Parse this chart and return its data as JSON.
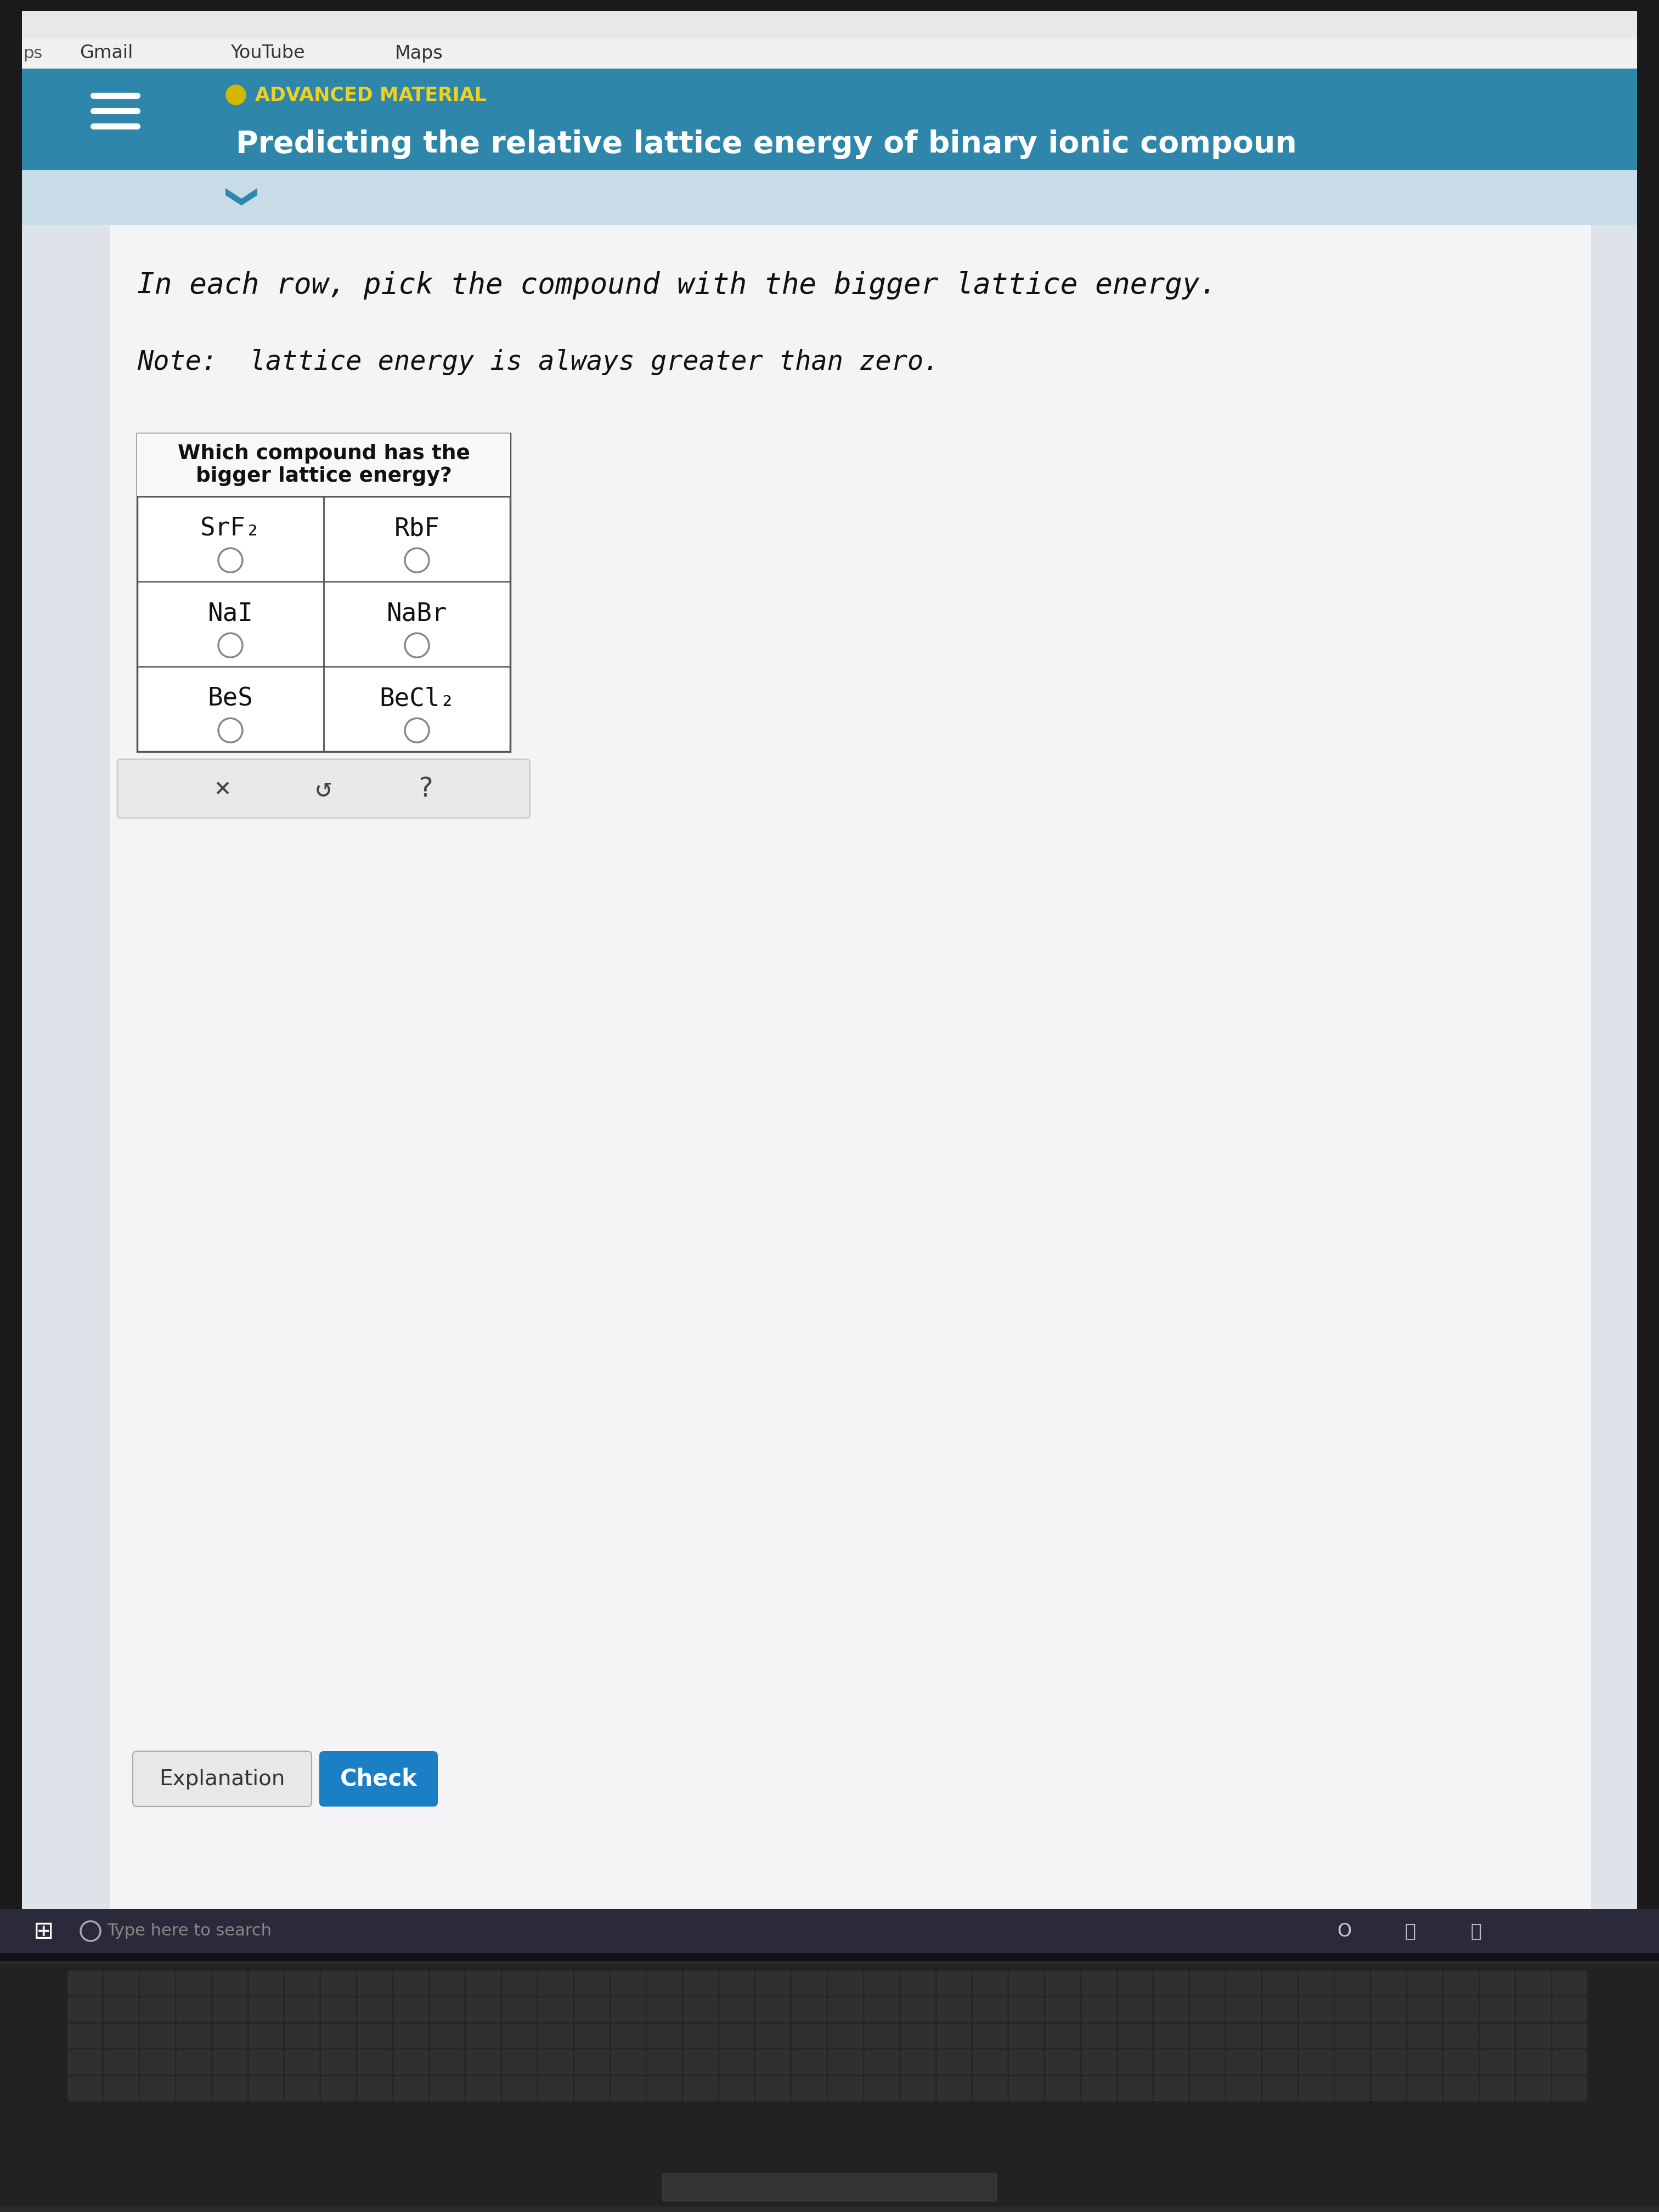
{
  "bg_outer": "#6a6a6a",
  "browser_bar_bg": "#f0f0f0",
  "screen_bg": "#c0c0c8",
  "header_color": "#2e87ab",
  "header_text_color": "#ffffff",
  "advanced_material_label": "ADVANCED MATERIAL",
  "advanced_dot_color": "#d4b800",
  "title_text": "Predicting the relative lattice energy of binary ionic compoun",
  "chevron_color": "#2e87ab",
  "chevron_bg": "#c8dce8",
  "content_bg": "#dde3e8",
  "white_panel_bg": "#f4f4f6",
  "instruction_text": "In each row, pick the compound with the bigger lattice energy.",
  "note_text": "Note:  lattice energy is always greater than zero.",
  "table_header_line1": "Which compound has the",
  "table_header_line2": "bigger lattice energy?",
  "table_col1": [
    "SrF₂",
    "NaI",
    "BeS"
  ],
  "table_col2": [
    "RbF",
    "NaBr",
    "BeCl₂"
  ],
  "table_border_color": "#555555",
  "table_bg": "#ffffff",
  "radio_color": "#888888",
  "taskbar_color": "#2a2a3a",
  "taskbar_dark": "#1e1e2e",
  "explanation_btn_color": "#e8e8e8",
  "check_btn_color": "#1a7fc4",
  "check_btn_text": "Check",
  "explanation_btn_text": "Explanation",
  "bottom_icon_x": "×",
  "bottom_icon_undo": "↺",
  "bottom_icon_q": "?",
  "search_bar_text": "Type here to search",
  "gmail_text": "Gmail",
  "youtube_text": "YouTube",
  "maps_text": "Maps",
  "hamburger_color": "#ffffff",
  "laptop_body_color": "#3a3a3a",
  "keyboard_color": "#222222",
  "keyboard_key_color": "#303030",
  "keyboard_edge_color": "#2a2a2a"
}
